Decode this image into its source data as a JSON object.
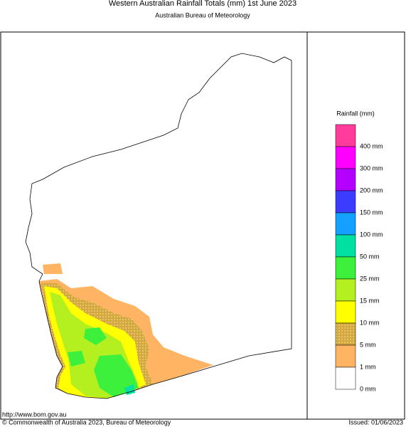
{
  "header": {
    "title": "Western Australian Rainfall Totals (mm) 1st June 2023",
    "subtitle": "Australian Bureau of Meteorology"
  },
  "legend": {
    "title": "Rainfall (mm)",
    "colors": [
      "#ff3c9c",
      "#ff00ff",
      "#b400ff",
      "#3c3cff",
      "#14a0ff",
      "#00e0a0",
      "#3cf03c",
      "#b4f020",
      "#ffff00",
      "#d4a83c",
      "#ffb464",
      "#ffffff"
    ],
    "labels": [
      "400 mm",
      "300 mm",
      "200 mm",
      "150 mm",
      "100 mm",
      "50 mm",
      "25 mm",
      "15 mm",
      "10 mm",
      "5 mm",
      "1 mm",
      "0 mm"
    ]
  },
  "footer": {
    "url": "http://www.bom.gov.au",
    "copyright": "© Commonwealth of Australia 2023, Bureau of Meteorology",
    "issued": "Issued: 01/06/2023"
  }
}
